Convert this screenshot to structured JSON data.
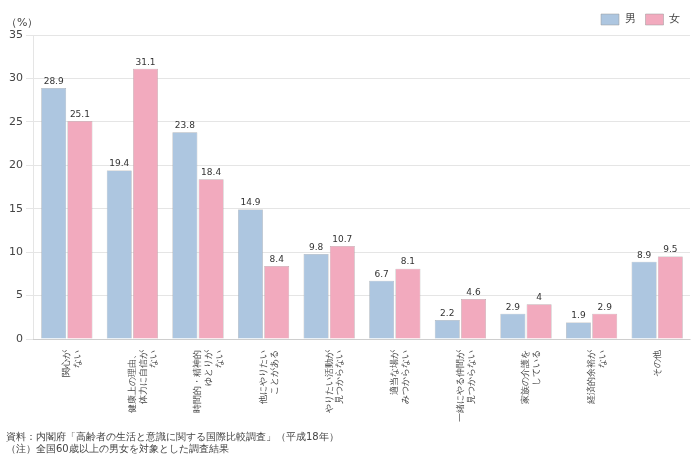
{
  "chart_data": {
    "type": "bar",
    "ylabel": "（%）",
    "categories": [
      "関心が\nない",
      "健康上の理由、\n体力に自信が\nない",
      "時間的・精神的\nゆとりが\nない",
      "他にやりたい\nことがある",
      "やりたい活動が\n見つからない",
      "適当な場が\nみつからない",
      "一緒にやる仲間が\n見つからない",
      "家族の介護を\nしている",
      "経済的余裕が\nない",
      "その他"
    ],
    "series": [
      {
        "name": "男",
        "color": "#adc6e0",
        "values": [
          28.9,
          19.4,
          23.8,
          14.9,
          9.8,
          6.7,
          2.2,
          2.9,
          1.9,
          8.9
        ]
      },
      {
        "name": "女",
        "color": "#f2aabe",
        "values": [
          25.1,
          31.1,
          18.4,
          8.4,
          10.7,
          8.1,
          4.6,
          4.0,
          2.9,
          9.5
        ]
      }
    ],
    "ylim": [
      0,
      35
    ],
    "yticks": [
      0,
      5,
      10,
      15,
      20,
      25,
      30,
      35
    ],
    "grid": true,
    "legend": "upper right",
    "data_labels": true,
    "annotations": [
      "資料：内閣府「高齢者の生活と意識に関する国際比較調査」（平成18年）",
      "（注）全国60歳以上の男女を対象とした調査結果"
    ]
  }
}
